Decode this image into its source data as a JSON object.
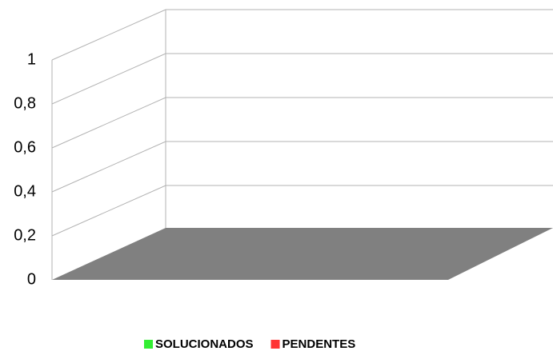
{
  "chart_data": {
    "type": "bar3d",
    "categories": [
      null
    ],
    "series": [
      {
        "name": "SOLUCIONADOS",
        "color": "#33ee33",
        "values": [
          0
        ]
      },
      {
        "name": "PENDENTES",
        "color": "#ff3333",
        "values": [
          0
        ]
      }
    ],
    "ylim": [
      0,
      1
    ],
    "yticks": [
      0,
      {
        "value": 0.2,
        "label": "0,2"
      },
      {
        "value": 0.4,
        "label": "0,4"
      },
      {
        "value": 0.6,
        "label": "0,6"
      },
      {
        "value": 0.8,
        "label": "0,8"
      },
      1
    ],
    "grid": true,
    "floor_color": "#808080"
  }
}
